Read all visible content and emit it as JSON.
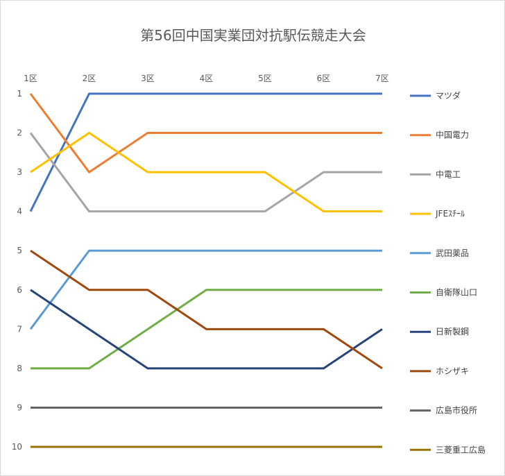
{
  "chart_data": {
    "type": "line",
    "title": "第56回中国実業団対抗駅伝競走大会",
    "categories": [
      "1区",
      "2区",
      "3区",
      "4区",
      "5区",
      "6区",
      "7区"
    ],
    "y_ticks": [
      "1",
      "2",
      "3",
      "4",
      "5",
      "6",
      "7",
      "8",
      "9",
      "10"
    ],
    "y_reversed": true,
    "ylim": [
      1,
      10
    ],
    "grid": false,
    "legend_position": "right",
    "series": [
      {
        "name": "マツダ",
        "color": "#4472c4",
        "values": [
          4,
          1,
          1,
          1,
          1,
          1,
          1
        ]
      },
      {
        "name": "中国電力",
        "color": "#ed7d31",
        "values": [
          1,
          3,
          2,
          2,
          2,
          2,
          2
        ]
      },
      {
        "name": "中電工",
        "color": "#a5a5a5",
        "values": [
          2,
          4,
          4,
          4,
          4,
          3,
          3
        ]
      },
      {
        "name": "JFEｽﾁｰﾙ",
        "color": "#ffc000",
        "values": [
          3,
          2,
          3,
          3,
          3,
          4,
          4
        ]
      },
      {
        "name": "武田薬品",
        "color": "#5b9bd5",
        "values": [
          7,
          5,
          5,
          5,
          5,
          5,
          5
        ]
      },
      {
        "name": "自衛隊山口",
        "color": "#70ad47",
        "values": [
          8,
          8,
          7,
          6,
          6,
          6,
          6
        ]
      },
      {
        "name": "日新製鋼",
        "color": "#264478",
        "values": [
          6,
          7,
          8,
          8,
          8,
          8,
          7
        ]
      },
      {
        "name": "ホシザキ",
        "color": "#9e480e",
        "values": [
          5,
          6,
          6,
          7,
          7,
          7,
          8
        ]
      },
      {
        "name": "広島市役所",
        "color": "#636363",
        "values": [
          9,
          9,
          9,
          9,
          9,
          9,
          9
        ]
      },
      {
        "name": "三菱重工広島",
        "color": "#997300",
        "values": [
          10,
          10,
          10,
          10,
          10,
          10,
          10
        ]
      }
    ]
  }
}
